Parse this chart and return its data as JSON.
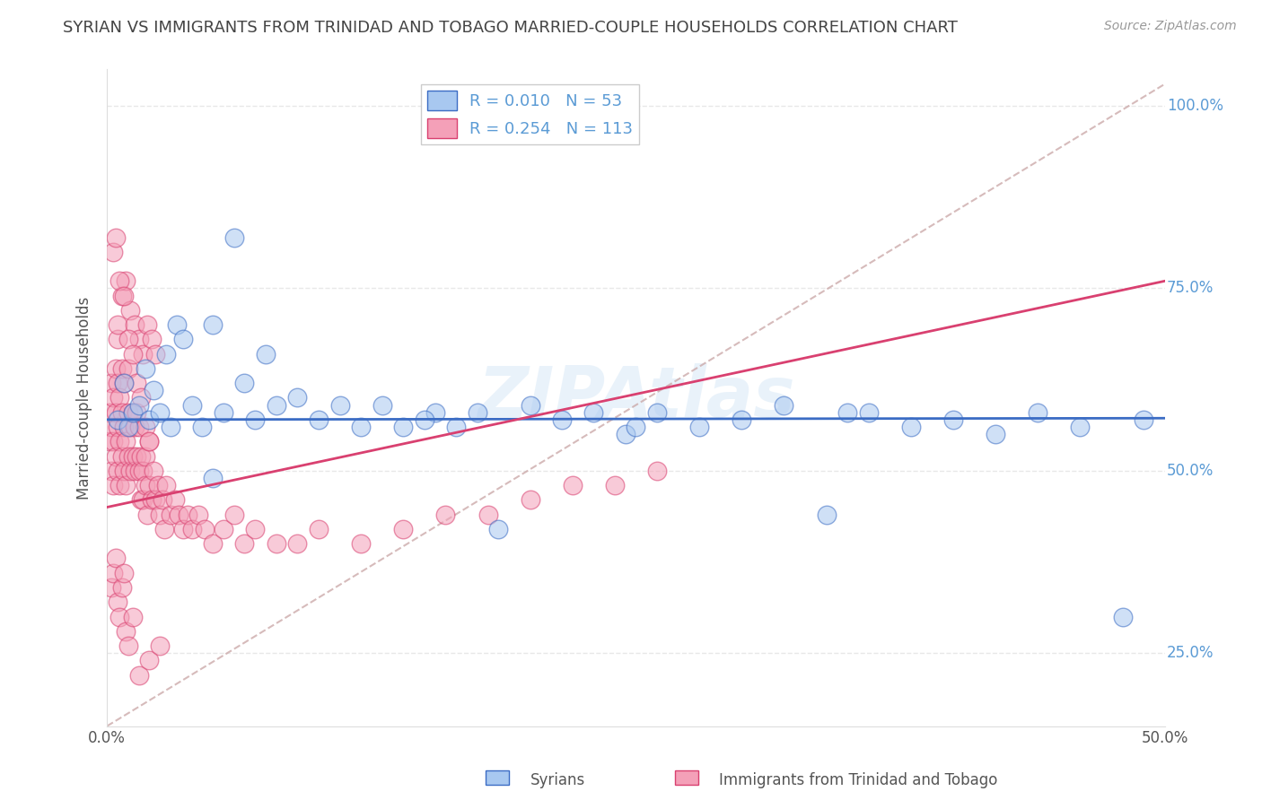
{
  "title": "SYRIAN VS IMMIGRANTS FROM TRINIDAD AND TOBAGO MARRIED-COUPLE HOUSEHOLDS CORRELATION CHART",
  "source": "Source: ZipAtlas.com",
  "ylabel": "Married-couple Households",
  "watermark": "ZIPAtlas",
  "legend_label1": "Syrians",
  "legend_label2": "Immigrants from Trinidad and Tobago",
  "r1": 0.01,
  "n1": 53,
  "r2": 0.254,
  "n2": 113,
  "color1": "#a8c8f0",
  "color2": "#f4a0b8",
  "trendline1_color": "#3b6cc4",
  "trendline2_color": "#d94070",
  "refline_color": "#ccaaaa",
  "xlim": [
    0.0,
    0.5
  ],
  "ylim": [
    0.15,
    1.05
  ],
  "xticks": [
    0.0,
    0.1,
    0.2,
    0.3,
    0.4,
    0.5
  ],
  "xtick_labels_show": [
    "0.0%",
    "50.0%"
  ],
  "yticks": [
    0.25,
    0.5,
    0.75,
    1.0
  ],
  "ytick_labels": [
    "25.0%",
    "50.0%",
    "75.0%",
    "100.0%"
  ],
  "background_color": "#ffffff",
  "grid_color": "#e8e8e8",
  "title_color": "#444444",
  "axis_label_color": "#555555",
  "tick_color": "#5b9bd5",
  "trendline1_y0": 0.57,
  "trendline1_y1": 0.572,
  "trendline2_y0": 0.45,
  "trendline2_y1": 0.76,
  "refline_x": [
    0.0,
    0.5
  ],
  "refline_y": [
    0.15,
    1.03
  ],
  "syrians_x": [
    0.005,
    0.008,
    0.01,
    0.012,
    0.015,
    0.018,
    0.02,
    0.022,
    0.025,
    0.028,
    0.03,
    0.033,
    0.036,
    0.04,
    0.045,
    0.05,
    0.055,
    0.06,
    0.065,
    0.07,
    0.075,
    0.08,
    0.09,
    0.1,
    0.11,
    0.12,
    0.13,
    0.14,
    0.155,
    0.165,
    0.175,
    0.185,
    0.2,
    0.215,
    0.23,
    0.245,
    0.26,
    0.28,
    0.3,
    0.32,
    0.34,
    0.36,
    0.38,
    0.4,
    0.42,
    0.44,
    0.46,
    0.48,
    0.49,
    0.05,
    0.15,
    0.25,
    0.35
  ],
  "syrians_y": [
    0.57,
    0.62,
    0.56,
    0.58,
    0.59,
    0.64,
    0.57,
    0.61,
    0.58,
    0.66,
    0.56,
    0.7,
    0.68,
    0.59,
    0.56,
    0.7,
    0.58,
    0.82,
    0.62,
    0.57,
    0.66,
    0.59,
    0.6,
    0.57,
    0.59,
    0.56,
    0.59,
    0.56,
    0.58,
    0.56,
    0.58,
    0.42,
    0.59,
    0.57,
    0.58,
    0.55,
    0.58,
    0.56,
    0.57,
    0.59,
    0.44,
    0.58,
    0.56,
    0.57,
    0.55,
    0.58,
    0.56,
    0.3,
    0.57,
    0.49,
    0.57,
    0.56,
    0.58
  ],
  "trinidad_x": [
    0.001,
    0.001,
    0.002,
    0.002,
    0.002,
    0.003,
    0.003,
    0.003,
    0.004,
    0.004,
    0.004,
    0.005,
    0.005,
    0.005,
    0.005,
    0.006,
    0.006,
    0.006,
    0.007,
    0.007,
    0.007,
    0.008,
    0.008,
    0.008,
    0.009,
    0.009,
    0.01,
    0.01,
    0.01,
    0.011,
    0.011,
    0.012,
    0.012,
    0.013,
    0.013,
    0.014,
    0.014,
    0.015,
    0.015,
    0.016,
    0.016,
    0.017,
    0.017,
    0.018,
    0.018,
    0.019,
    0.02,
    0.02,
    0.021,
    0.022,
    0.023,
    0.024,
    0.025,
    0.026,
    0.027,
    0.028,
    0.03,
    0.032,
    0.034,
    0.036,
    0.038,
    0.04,
    0.043,
    0.046,
    0.05,
    0.055,
    0.06,
    0.065,
    0.07,
    0.08,
    0.09,
    0.1,
    0.12,
    0.14,
    0.16,
    0.18,
    0.2,
    0.22,
    0.24,
    0.26,
    0.005,
    0.007,
    0.009,
    0.011,
    0.013,
    0.015,
    0.017,
    0.019,
    0.021,
    0.023,
    0.003,
    0.004,
    0.006,
    0.008,
    0.01,
    0.012,
    0.014,
    0.016,
    0.018,
    0.02,
    0.002,
    0.003,
    0.004,
    0.005,
    0.006,
    0.007,
    0.008,
    0.009,
    0.01,
    0.012,
    0.015,
    0.02,
    0.025
  ],
  "trinidad_y": [
    0.54,
    0.58,
    0.5,
    0.56,
    0.62,
    0.48,
    0.54,
    0.6,
    0.52,
    0.58,
    0.64,
    0.5,
    0.56,
    0.62,
    0.68,
    0.48,
    0.54,
    0.6,
    0.52,
    0.58,
    0.64,
    0.5,
    0.56,
    0.62,
    0.48,
    0.54,
    0.52,
    0.58,
    0.64,
    0.5,
    0.56,
    0.52,
    0.58,
    0.5,
    0.56,
    0.52,
    0.58,
    0.5,
    0.56,
    0.52,
    0.46,
    0.5,
    0.46,
    0.52,
    0.48,
    0.44,
    0.48,
    0.54,
    0.46,
    0.5,
    0.46,
    0.48,
    0.44,
    0.46,
    0.42,
    0.48,
    0.44,
    0.46,
    0.44,
    0.42,
    0.44,
    0.42,
    0.44,
    0.42,
    0.4,
    0.42,
    0.44,
    0.4,
    0.42,
    0.4,
    0.4,
    0.42,
    0.4,
    0.42,
    0.44,
    0.44,
    0.46,
    0.48,
    0.48,
    0.5,
    0.7,
    0.74,
    0.76,
    0.72,
    0.7,
    0.68,
    0.66,
    0.7,
    0.68,
    0.66,
    0.8,
    0.82,
    0.76,
    0.74,
    0.68,
    0.66,
    0.62,
    0.6,
    0.56,
    0.54,
    0.34,
    0.36,
    0.38,
    0.32,
    0.3,
    0.34,
    0.36,
    0.28,
    0.26,
    0.3,
    0.22,
    0.24,
    0.26
  ]
}
